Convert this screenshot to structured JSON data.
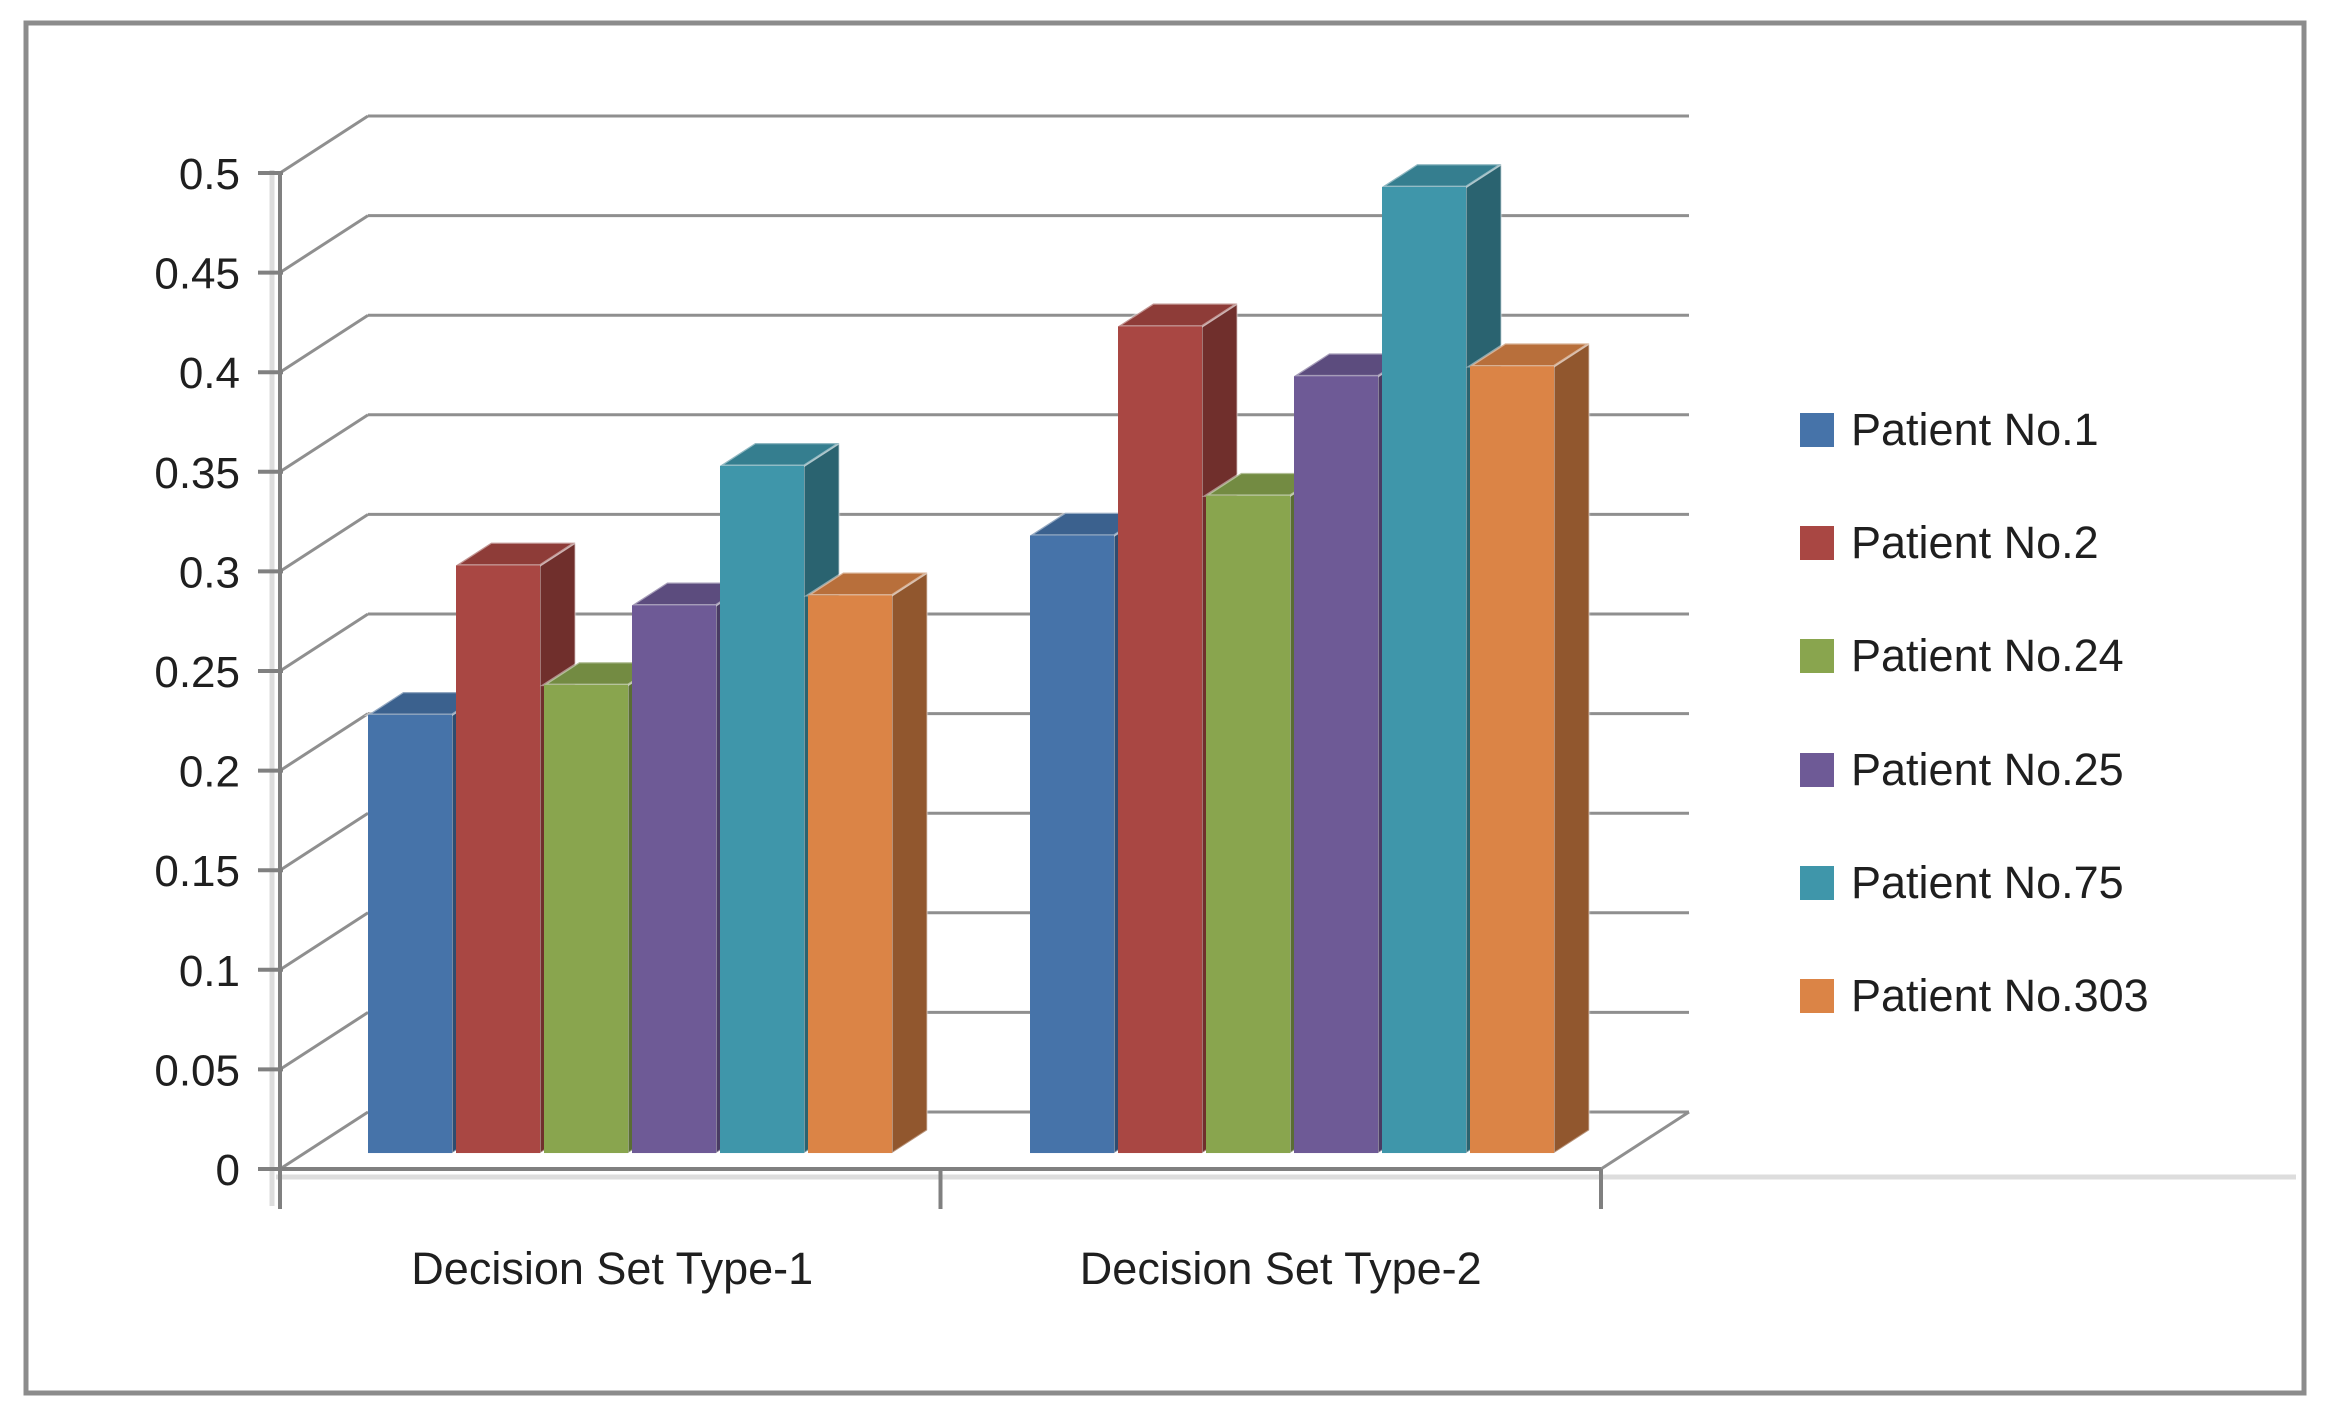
{
  "chart_data": {
    "type": "bar",
    "subtype": "3d-clustered-column",
    "title": "",
    "categories": [
      "Decision Set Type-1",
      "Decision Set Type-2"
    ],
    "series": [
      {
        "name": "Patient No.1",
        "color": "#4673A9",
        "values": [
          0.22,
          0.31
        ]
      },
      {
        "name": "Patient No.2",
        "color": "#A94743",
        "values": [
          0.295,
          0.415
        ]
      },
      {
        "name": "Patient No.24",
        "color": "#89A54E",
        "values": [
          0.235,
          0.33
        ]
      },
      {
        "name": "Patient No.25",
        "color": "#6E5A96",
        "values": [
          0.275,
          0.39
        ]
      },
      {
        "name": "Patient No.75",
        "color": "#3F96AA",
        "values": [
          0.345,
          0.485
        ]
      },
      {
        "name": "Patient No.303",
        "color": "#DB8446",
        "values": [
          0.28,
          0.395
        ]
      }
    ],
    "y_axis": {
      "min": 0,
      "max": 0.5,
      "step": 0.05,
      "tick_labels": [
        "0",
        "0.05",
        "0.1",
        "0.15",
        "0.2",
        "0.25",
        "0.3",
        "0.35",
        "0.4",
        "0.45",
        "0.5"
      ]
    },
    "x_axis_labels": [
      "Decision Set Type-1",
      "Decision Set Type-2"
    ],
    "legend_position": "right",
    "grid": true,
    "gridline_color": "#8F8F8F",
    "axis_color": "#808080",
    "text_color": "#1F1F1F",
    "background": "#FFFFFF",
    "frame_border_color": "#8C8C8C"
  }
}
